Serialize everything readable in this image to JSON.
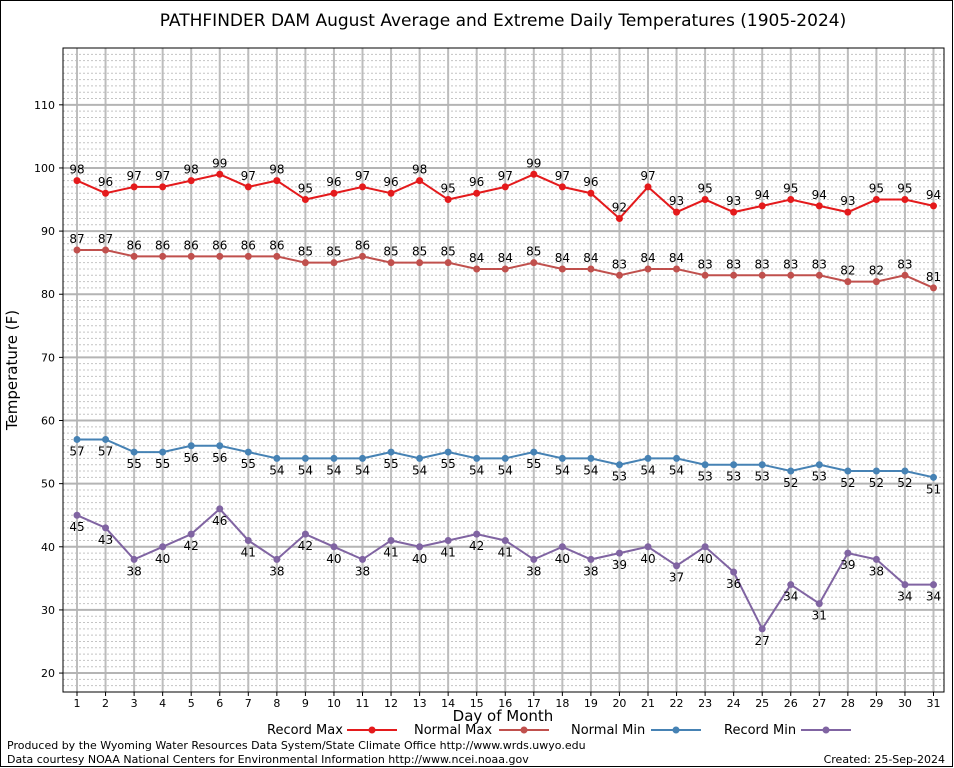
{
  "chart_data": {
    "type": "line",
    "title": "PATHFINDER DAM August Average and Extreme Daily Temperatures (1905-2024)",
    "xlabel": "Day of Month",
    "ylabel": "Temperature (F)",
    "x": [
      1,
      2,
      3,
      4,
      5,
      6,
      7,
      8,
      9,
      10,
      11,
      12,
      13,
      14,
      15,
      16,
      17,
      18,
      19,
      20,
      21,
      22,
      23,
      24,
      25,
      26,
      27,
      28,
      29,
      30,
      31
    ],
    "ylim": [
      17,
      119
    ],
    "yticks": [
      20,
      30,
      40,
      50,
      60,
      70,
      80,
      90,
      100,
      110
    ],
    "grid": true,
    "legend_position": "bottom",
    "series": [
      {
        "name": "Record Max",
        "color": "#e41a1c",
        "label_pos": "above",
        "values": [
          98,
          96,
          97,
          97,
          98,
          99,
          97,
          98,
          95,
          96,
          97,
          96,
          98,
          95,
          96,
          97,
          99,
          97,
          96,
          92,
          97,
          93,
          95,
          93,
          94,
          95,
          94,
          93,
          95,
          95,
          94
        ]
      },
      {
        "name": "Normal Max",
        "color": "#c0504d",
        "label_pos": "above",
        "values": [
          87,
          87,
          86,
          86,
          86,
          86,
          86,
          86,
          85,
          85,
          86,
          85,
          85,
          85,
          84,
          84,
          85,
          84,
          84,
          83,
          84,
          84,
          83,
          83,
          83,
          83,
          83,
          82,
          82,
          83,
          81
        ]
      },
      {
        "name": "Normal Min",
        "color": "#4682b4",
        "label_pos": "below",
        "values": [
          57,
          57,
          55,
          55,
          56,
          56,
          55,
          54,
          54,
          54,
          54,
          55,
          54,
          55,
          54,
          54,
          55,
          54,
          54,
          53,
          54,
          54,
          53,
          53,
          53,
          52,
          53,
          52,
          52,
          52,
          51
        ]
      },
      {
        "name": "Record Min",
        "color": "#8064a2",
        "label_pos": "below",
        "values": [
          45,
          43,
          38,
          40,
          42,
          46,
          41,
          38,
          42,
          40,
          38,
          41,
          40,
          41,
          42,
          41,
          38,
          40,
          38,
          39,
          40,
          37,
          40,
          36,
          27,
          34,
          31,
          39,
          38,
          34,
          34
        ]
      }
    ]
  },
  "footer": {
    "produced_by": "Produced by the Wyoming Water Resources Data System/State Climate Office http://www.wrds.uwyo.edu",
    "courtesy": "Data courtesy NOAA National Centers for Environmental Information http://www.ncei.noaa.gov",
    "created": "Created: 25-Sep-2024"
  }
}
